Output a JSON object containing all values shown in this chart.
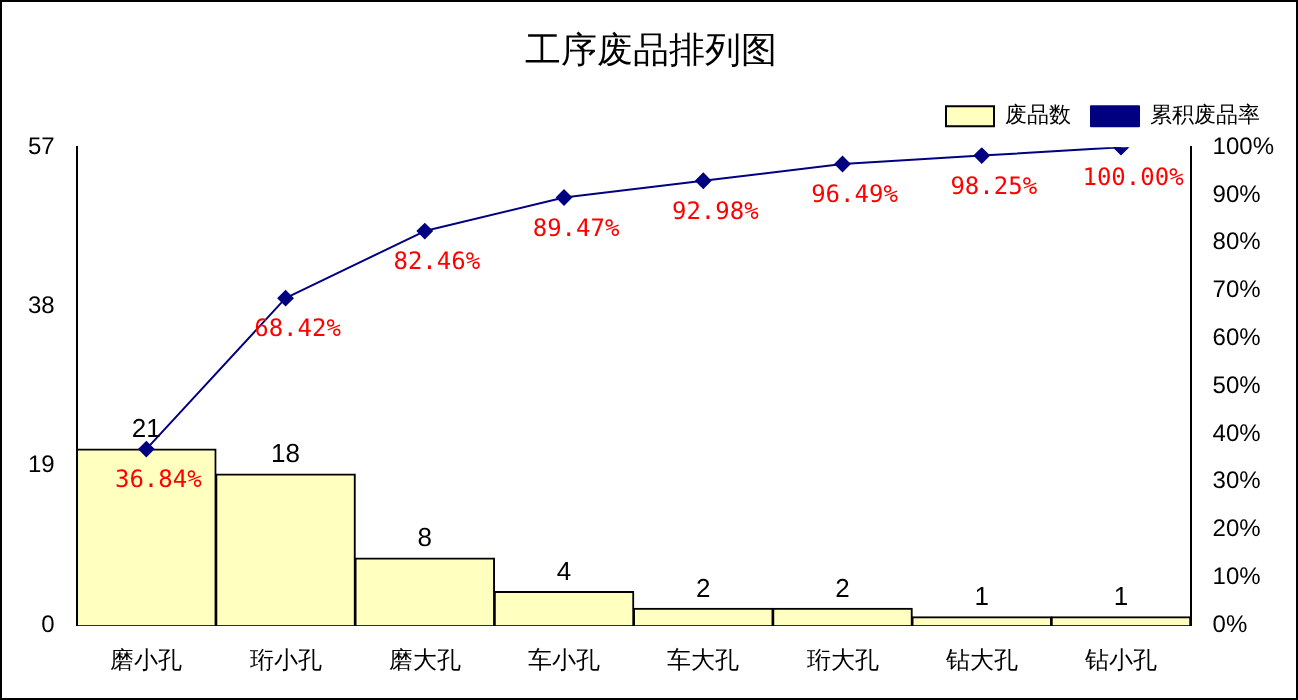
{
  "chart_data": {
    "type": "bar",
    "title": "工序废品排列图",
    "categories": [
      "磨小孔",
      "珩小孔",
      "磨大孔",
      "车小孔",
      "车大孔",
      "珩大孔",
      "钻大孔",
      "钻小孔"
    ],
    "series": [
      {
        "name": "废品数",
        "color": "#ffffc0",
        "values": [
          21,
          18,
          8,
          4,
          2,
          2,
          1,
          1
        ],
        "value_labels": [
          "21",
          "18",
          "8",
          "4",
          "2",
          "2",
          "1",
          "1"
        ]
      },
      {
        "name": "累积废品率",
        "type": "line",
        "axis": "y2",
        "color": "#000080",
        "marker": "diamond",
        "values": [
          36.84,
          68.42,
          82.46,
          89.47,
          92.98,
          96.49,
          98.25,
          100.0
        ],
        "value_labels": [
          "36.84%",
          "68.42%",
          "82.46%",
          "89.47%",
          "92.98%",
          "96.49%",
          "98.25%",
          "100.00%"
        ]
      }
    ],
    "ylim": [
      0,
      57
    ],
    "yticks": [
      0,
      19,
      38,
      57
    ],
    "y2lim": [
      0,
      100
    ],
    "y2ticks": [
      {
        "value": 0,
        "label": "0%"
      },
      {
        "value": 10,
        "label": "10%"
      },
      {
        "value": 20,
        "label": "20%"
      },
      {
        "value": 30,
        "label": "30%"
      },
      {
        "value": 40,
        "label": "40%"
      },
      {
        "value": 50,
        "label": "50%"
      },
      {
        "value": 60,
        "label": "60%"
      },
      {
        "value": 70,
        "label": "70%"
      },
      {
        "value": 80,
        "label": "80%"
      },
      {
        "value": 90,
        "label": "90%"
      },
      {
        "value": 100,
        "label": "100%"
      }
    ],
    "legend": "top right"
  }
}
